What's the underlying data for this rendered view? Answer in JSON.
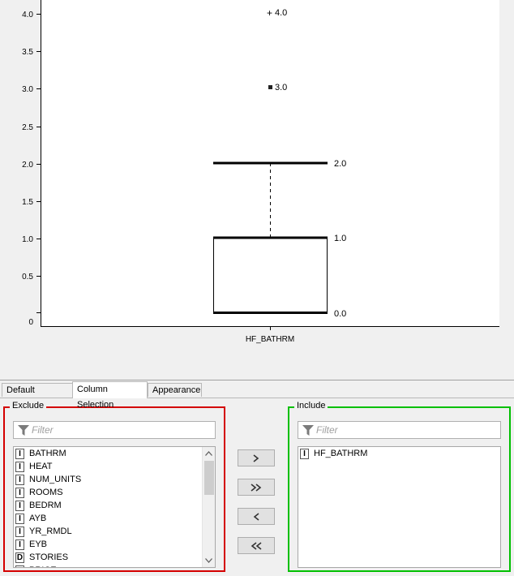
{
  "plot": {
    "y_ticks": [
      "4.0",
      "3.5",
      "3.0",
      "2.5",
      "2.0",
      "1.5",
      "1.0",
      "0.5",
      "",
      "0"
    ],
    "x_label": "HF_BATHRM",
    "outliers": [
      {
        "marker": "+",
        "label": "4.0"
      },
      {
        "marker": "■",
        "label": "3.0"
      }
    ],
    "upper_whisker_label": "2.0",
    "q3_label": "1.0",
    "median_label": "0.0"
  },
  "tabs": [
    {
      "label": "Default Settings",
      "active": false
    },
    {
      "label": "Column Selection",
      "active": true
    },
    {
      "label": "Appearance",
      "active": false
    }
  ],
  "exclude": {
    "title": "Exclude",
    "border_color": "#d40000",
    "filter_placeholder": "Filter",
    "items": [
      {
        "type": "I",
        "name": "BATHRM"
      },
      {
        "type": "I",
        "name": "HEAT"
      },
      {
        "type": "I",
        "name": "NUM_UNITS"
      },
      {
        "type": "I",
        "name": "ROOMS"
      },
      {
        "type": "I",
        "name": "BEDRM"
      },
      {
        "type": "I",
        "name": "AYB"
      },
      {
        "type": "I",
        "name": "YR_RMDL"
      },
      {
        "type": "I",
        "name": "EYB"
      },
      {
        "type": "D",
        "name": "STORIES"
      },
      {
        "type": "I",
        "name": "PRICE"
      }
    ]
  },
  "include": {
    "title": "Include",
    "border_color": "#00c000",
    "filter_placeholder": "Filter",
    "items": [
      {
        "type": "I",
        "name": "HF_BATHRM"
      }
    ]
  },
  "buttons": {
    "add": "›",
    "add_all": "»",
    "remove": "‹",
    "remove_all": "«"
  }
}
